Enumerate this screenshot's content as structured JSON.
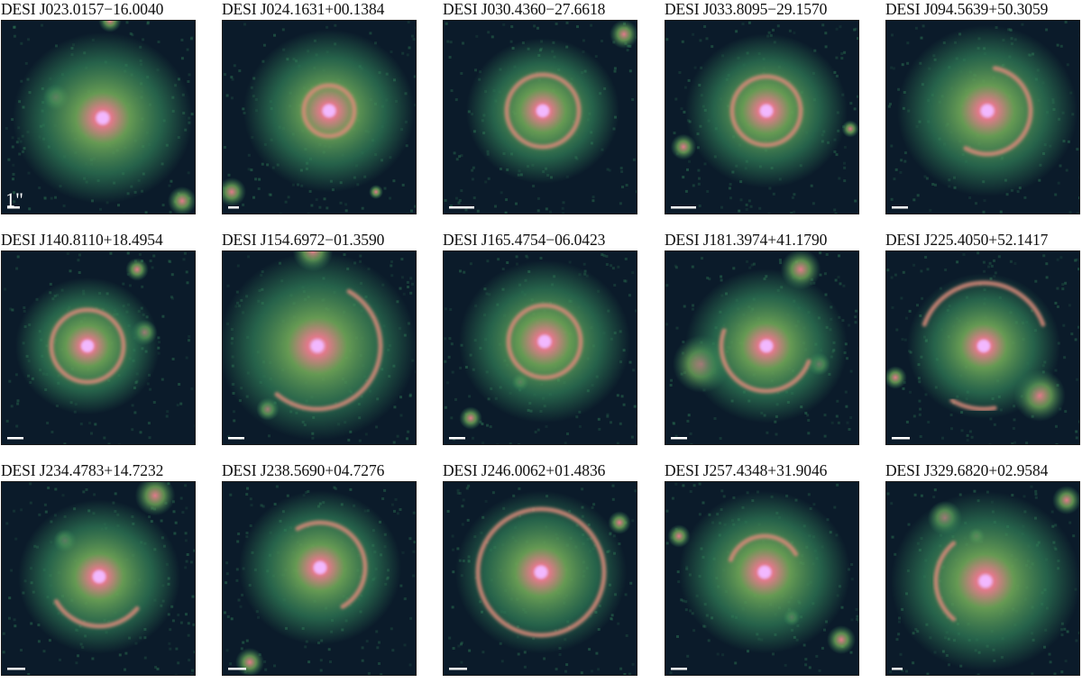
{
  "panels": [
    {
      "title": "DESI J023.0157−16.0040",
      "scale_bar_label": "1\""
    },
    {
      "title": "DESI J024.1631+00.1384"
    },
    {
      "title": "DESI J030.4360−27.6618"
    },
    {
      "title": "DESI J033.8095−29.1570"
    },
    {
      "title": "DESI J094.5639+50.3059"
    },
    {
      "title": "DESI J140.8110+18.4954"
    },
    {
      "title": "DESI J154.6972−01.3590"
    },
    {
      "title": "DESI J165.4754−06.0423"
    },
    {
      "title": "DESI J181.3974+41.1790"
    },
    {
      "title": "DESI J225.4050+52.1417"
    },
    {
      "title": "DESI J234.4783+14.7232"
    },
    {
      "title": "DESI J238.5690+04.7276"
    },
    {
      "title": "DESI J246.0062+01.4836"
    },
    {
      "title": "DESI J257.4348+31.9046"
    },
    {
      "title": "DESI J329.6820+02.9584"
    }
  ],
  "colors": {
    "background_noise": "#0b1b2a",
    "halo_outer": "#2f7a55",
    "halo_inner": "#6aa055",
    "core": "#e07a8a",
    "core_center": "#f2b8ff",
    "arc": "#d98a7a",
    "scale_bar": "#ffffff"
  }
}
